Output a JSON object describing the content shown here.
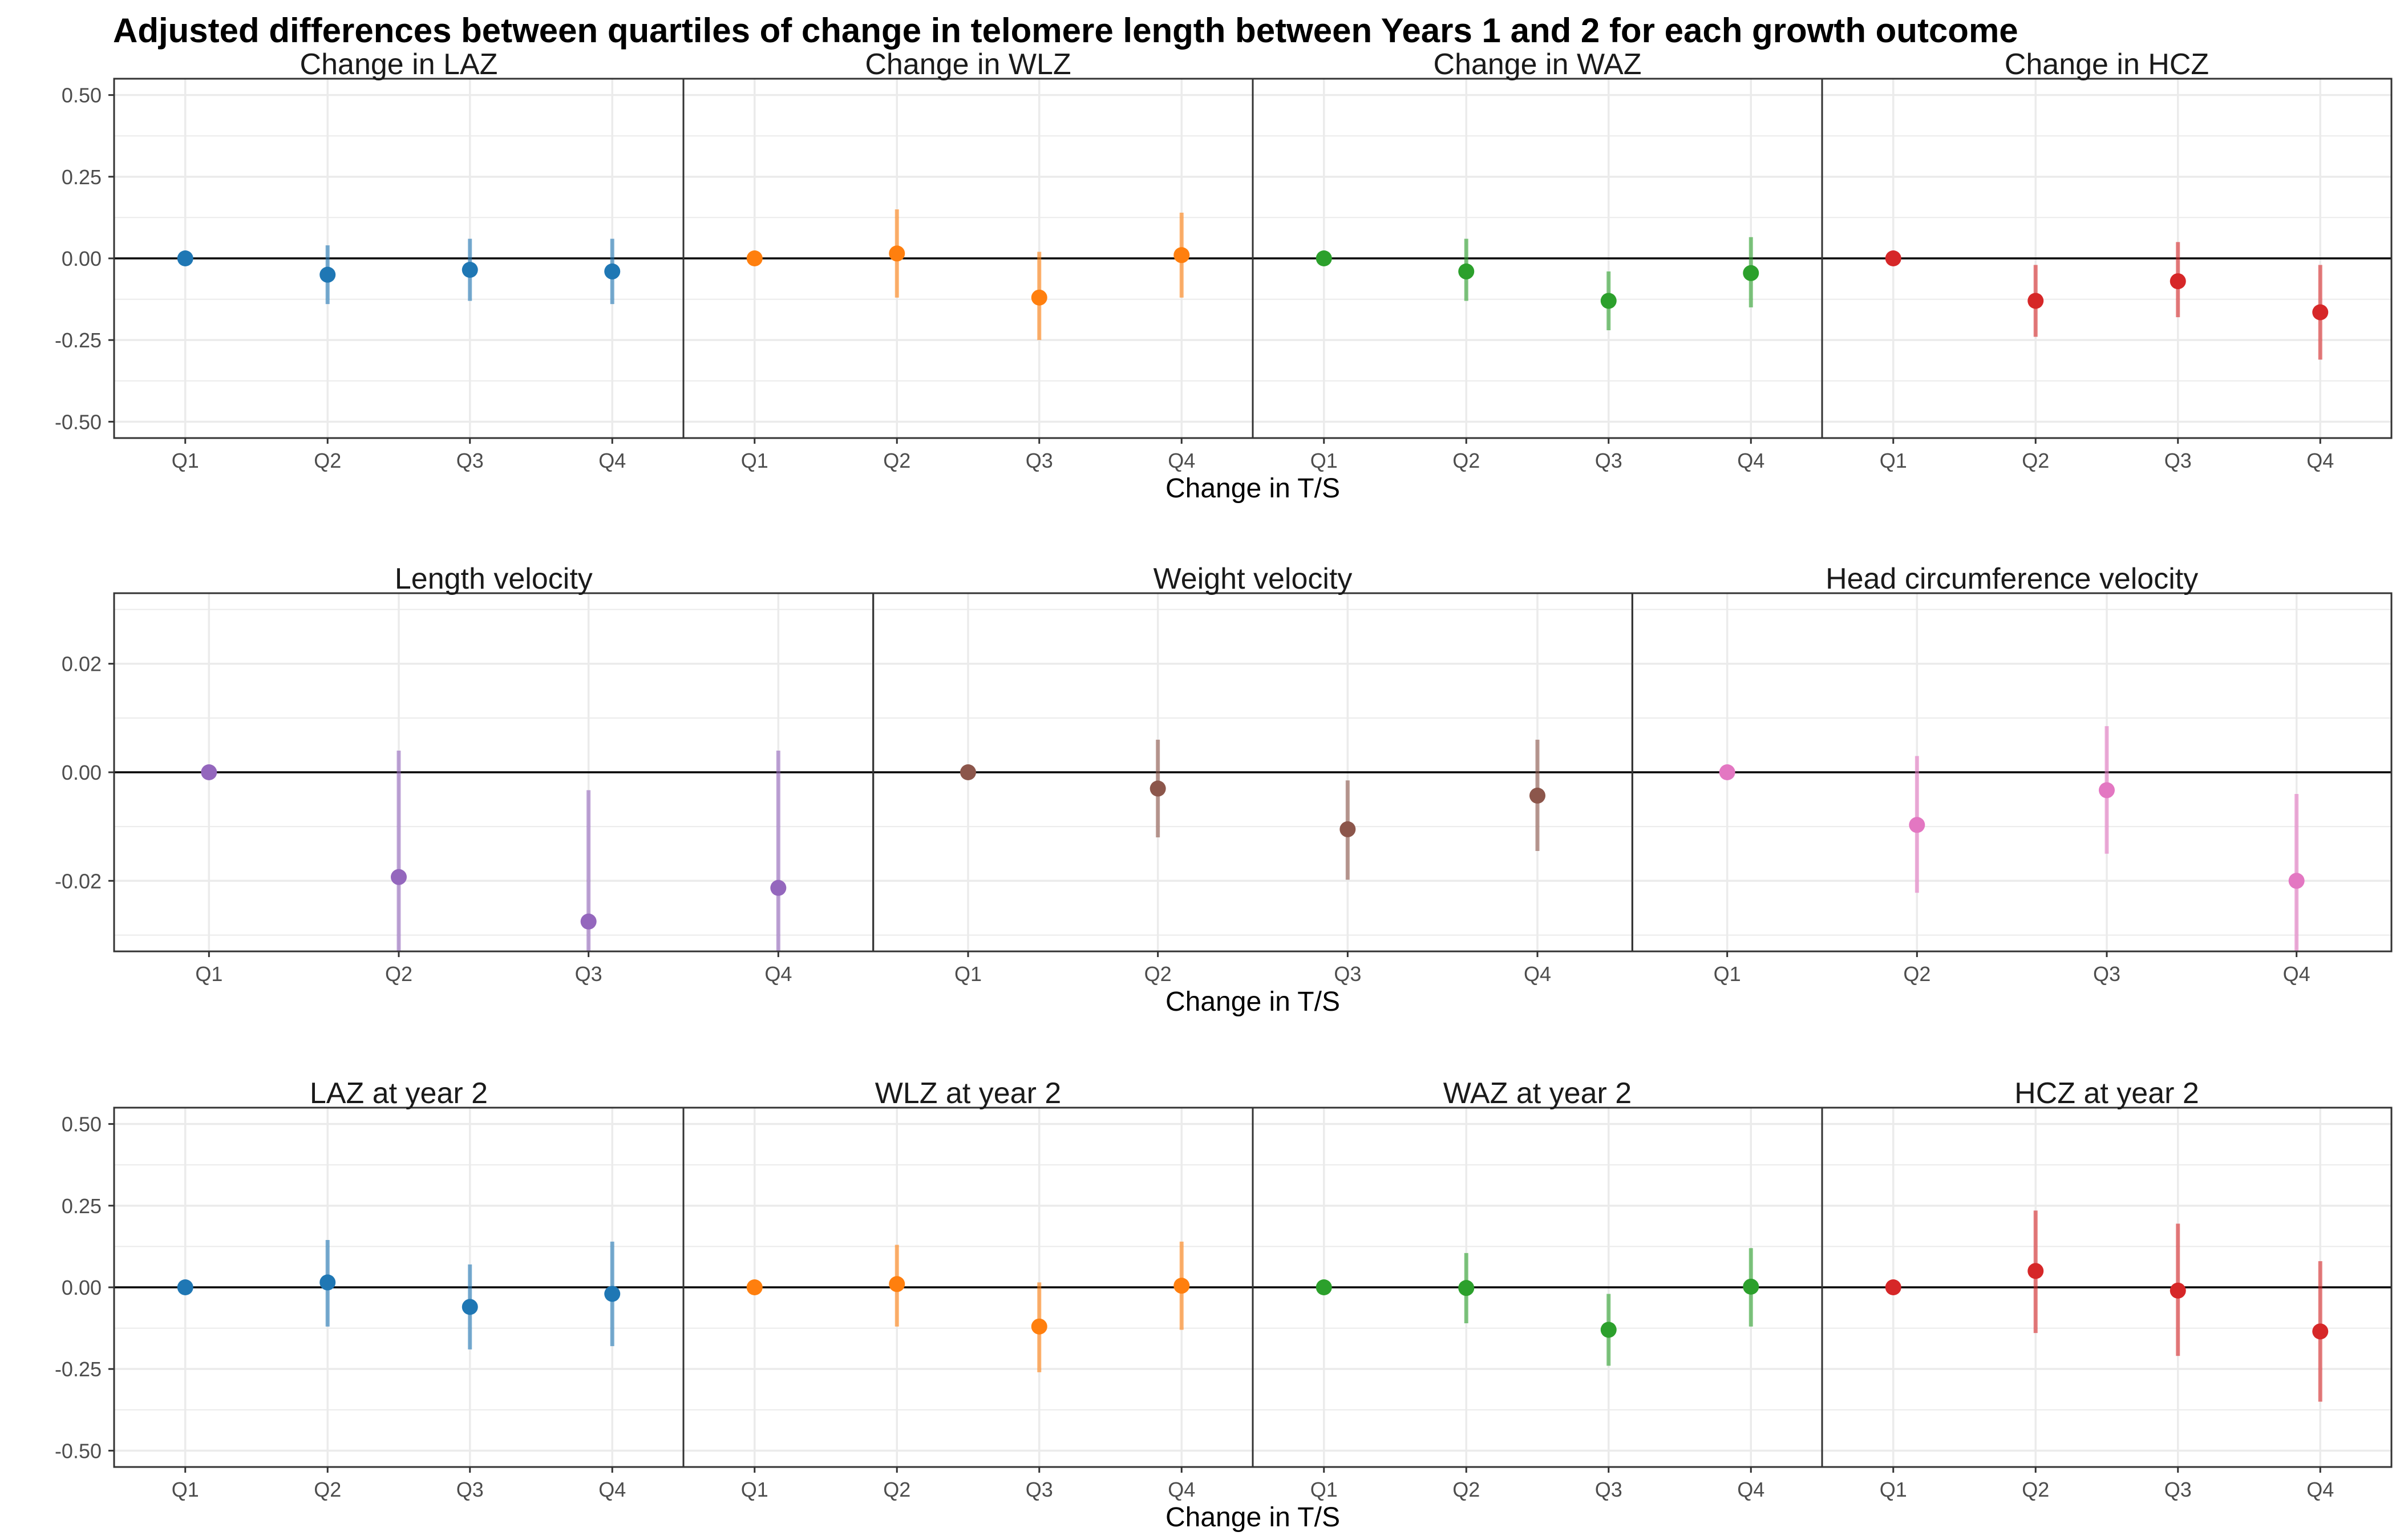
{
  "title": "Adjusted differences between quartiles of change in telomere length between Years 1 and 2 for each growth outcome",
  "colors": {
    "blue": "#1f77b4",
    "orange": "#ff7f0e",
    "green": "#2ca02c",
    "red": "#d62728",
    "purple": "#9467bd",
    "brown": "#8c564b",
    "pink": "#e377c2",
    "zero_line": "#000000",
    "grid": "#ebebeb",
    "panel_border": "#333333"
  },
  "chart_data": [
    {
      "type": "scatter",
      "xlabel": "Change in T/S",
      "categories": [
        "Q1",
        "Q2",
        "Q3",
        "Q4"
      ],
      "ylim": [
        -0.55,
        0.55
      ],
      "yticks": [
        -0.5,
        -0.25,
        0.0,
        0.25,
        0.5
      ],
      "ytick_labels": [
        "-0.50",
        "-0.25",
        "0.00",
        "0.25",
        "0.50"
      ],
      "panels": [
        {
          "title": "Change in LAZ",
          "color": "blue",
          "points": [
            {
              "x": "Q1",
              "y": 0.0,
              "lo": 0.0,
              "hi": 0.0
            },
            {
              "x": "Q2",
              "y": -0.05,
              "lo": -0.14,
              "hi": 0.04
            },
            {
              "x": "Q3",
              "y": -0.035,
              "lo": -0.13,
              "hi": 0.06
            },
            {
              "x": "Q4",
              "y": -0.04,
              "lo": -0.14,
              "hi": 0.06
            }
          ]
        },
        {
          "title": "Change in WLZ",
          "color": "orange",
          "points": [
            {
              "x": "Q1",
              "y": 0.0,
              "lo": 0.0,
              "hi": 0.0
            },
            {
              "x": "Q2",
              "y": 0.015,
              "lo": -0.12,
              "hi": 0.15
            },
            {
              "x": "Q3",
              "y": -0.12,
              "lo": -0.25,
              "hi": 0.02
            },
            {
              "x": "Q4",
              "y": 0.01,
              "lo": -0.12,
              "hi": 0.14
            }
          ]
        },
        {
          "title": "Change in WAZ",
          "color": "green",
          "points": [
            {
              "x": "Q1",
              "y": 0.0,
              "lo": 0.0,
              "hi": 0.0
            },
            {
              "x": "Q2",
              "y": -0.04,
              "lo": -0.13,
              "hi": 0.06
            },
            {
              "x": "Q3",
              "y": -0.13,
              "lo": -0.22,
              "hi": -0.04
            },
            {
              "x": "Q4",
              "y": -0.045,
              "lo": -0.15,
              "hi": 0.065
            }
          ]
        },
        {
          "title": "Change in HCZ",
          "color": "red",
          "points": [
            {
              "x": "Q1",
              "y": 0.0,
              "lo": 0.0,
              "hi": 0.0
            },
            {
              "x": "Q2",
              "y": -0.13,
              "lo": -0.24,
              "hi": -0.02
            },
            {
              "x": "Q3",
              "y": -0.07,
              "lo": -0.18,
              "hi": 0.05
            },
            {
              "x": "Q4",
              "y": -0.165,
              "lo": -0.31,
              "hi": -0.02
            }
          ]
        }
      ]
    },
    {
      "type": "scatter",
      "xlabel": "Change in T/S",
      "categories": [
        "Q1",
        "Q2",
        "Q3",
        "Q4"
      ],
      "ylim": [
        -0.033,
        0.033
      ],
      "yticks": [
        -0.02,
        0.0,
        0.02
      ],
      "ytick_labels": [
        "-0.02",
        "0.00",
        "0.02"
      ],
      "panels": [
        {
          "title": "Length velocity",
          "color": "purple",
          "points": [
            {
              "x": "Q1",
              "y": 0.0,
              "lo": 0.0,
              "hi": 0.0
            },
            {
              "x": "Q2",
              "y": -0.0193,
              "lo": -0.033,
              "hi": 0.004
            },
            {
              "x": "Q3",
              "y": -0.0275,
              "lo": -0.033,
              "hi": -0.0033
            },
            {
              "x": "Q4",
              "y": -0.0213,
              "lo": -0.033,
              "hi": 0.004
            }
          ]
        },
        {
          "title": "Weight velocity",
          "color": "brown",
          "points": [
            {
              "x": "Q1",
              "y": 0.0,
              "lo": 0.0,
              "hi": 0.0
            },
            {
              "x": "Q2",
              "y": -0.003,
              "lo": -0.012,
              "hi": 0.006
            },
            {
              "x": "Q3",
              "y": -0.0105,
              "lo": -0.0198,
              "hi": -0.0015
            },
            {
              "x": "Q4",
              "y": -0.0043,
              "lo": -0.0145,
              "hi": 0.006
            }
          ]
        },
        {
          "title": "Head circumference velocity",
          "color": "pink",
          "points": [
            {
              "x": "Q1",
              "y": 0.0,
              "lo": 0.0,
              "hi": 0.0
            },
            {
              "x": "Q2",
              "y": -0.0097,
              "lo": -0.0222,
              "hi": 0.003
            },
            {
              "x": "Q3",
              "y": -0.0033,
              "lo": -0.015,
              "hi": 0.0085
            },
            {
              "x": "Q4",
              "y": -0.02,
              "lo": -0.033,
              "hi": -0.004
            }
          ]
        }
      ]
    },
    {
      "type": "scatter",
      "xlabel": "Change in T/S",
      "categories": [
        "Q1",
        "Q2",
        "Q3",
        "Q4"
      ],
      "ylim": [
        -0.55,
        0.55
      ],
      "yticks": [
        -0.5,
        -0.25,
        0.0,
        0.25,
        0.5
      ],
      "ytick_labels": [
        "-0.50",
        "-0.25",
        "0.00",
        "0.25",
        "0.50"
      ],
      "panels": [
        {
          "title": "LAZ at year 2",
          "color": "blue",
          "points": [
            {
              "x": "Q1",
              "y": 0.0,
              "lo": 0.0,
              "hi": 0.0
            },
            {
              "x": "Q2",
              "y": 0.015,
              "lo": -0.12,
              "hi": 0.145
            },
            {
              "x": "Q3",
              "y": -0.06,
              "lo": -0.19,
              "hi": 0.07
            },
            {
              "x": "Q4",
              "y": -0.02,
              "lo": -0.18,
              "hi": 0.14
            }
          ]
        },
        {
          "title": "WLZ at year 2",
          "color": "orange",
          "points": [
            {
              "x": "Q1",
              "y": 0.0,
              "lo": 0.0,
              "hi": 0.0
            },
            {
              "x": "Q2",
              "y": 0.01,
              "lo": -0.12,
              "hi": 0.13
            },
            {
              "x": "Q3",
              "y": -0.12,
              "lo": -0.26,
              "hi": 0.015
            },
            {
              "x": "Q4",
              "y": 0.005,
              "lo": -0.13,
              "hi": 0.14
            }
          ]
        },
        {
          "title": "WAZ at year 2",
          "color": "green",
          "points": [
            {
              "x": "Q1",
              "y": 0.0,
              "lo": 0.0,
              "hi": 0.0
            },
            {
              "x": "Q2",
              "y": -0.002,
              "lo": -0.11,
              "hi": 0.105
            },
            {
              "x": "Q3",
              "y": -0.13,
              "lo": -0.24,
              "hi": -0.02
            },
            {
              "x": "Q4",
              "y": 0.002,
              "lo": -0.12,
              "hi": 0.12
            }
          ]
        },
        {
          "title": "HCZ at year 2",
          "color": "red",
          "points": [
            {
              "x": "Q1",
              "y": 0.0,
              "lo": 0.0,
              "hi": 0.0
            },
            {
              "x": "Q2",
              "y": 0.05,
              "lo": -0.14,
              "hi": 0.235
            },
            {
              "x": "Q3",
              "y": -0.01,
              "lo": -0.21,
              "hi": 0.195
            },
            {
              "x": "Q4",
              "y": -0.135,
              "lo": -0.35,
              "hi": 0.08
            }
          ]
        }
      ]
    }
  ]
}
